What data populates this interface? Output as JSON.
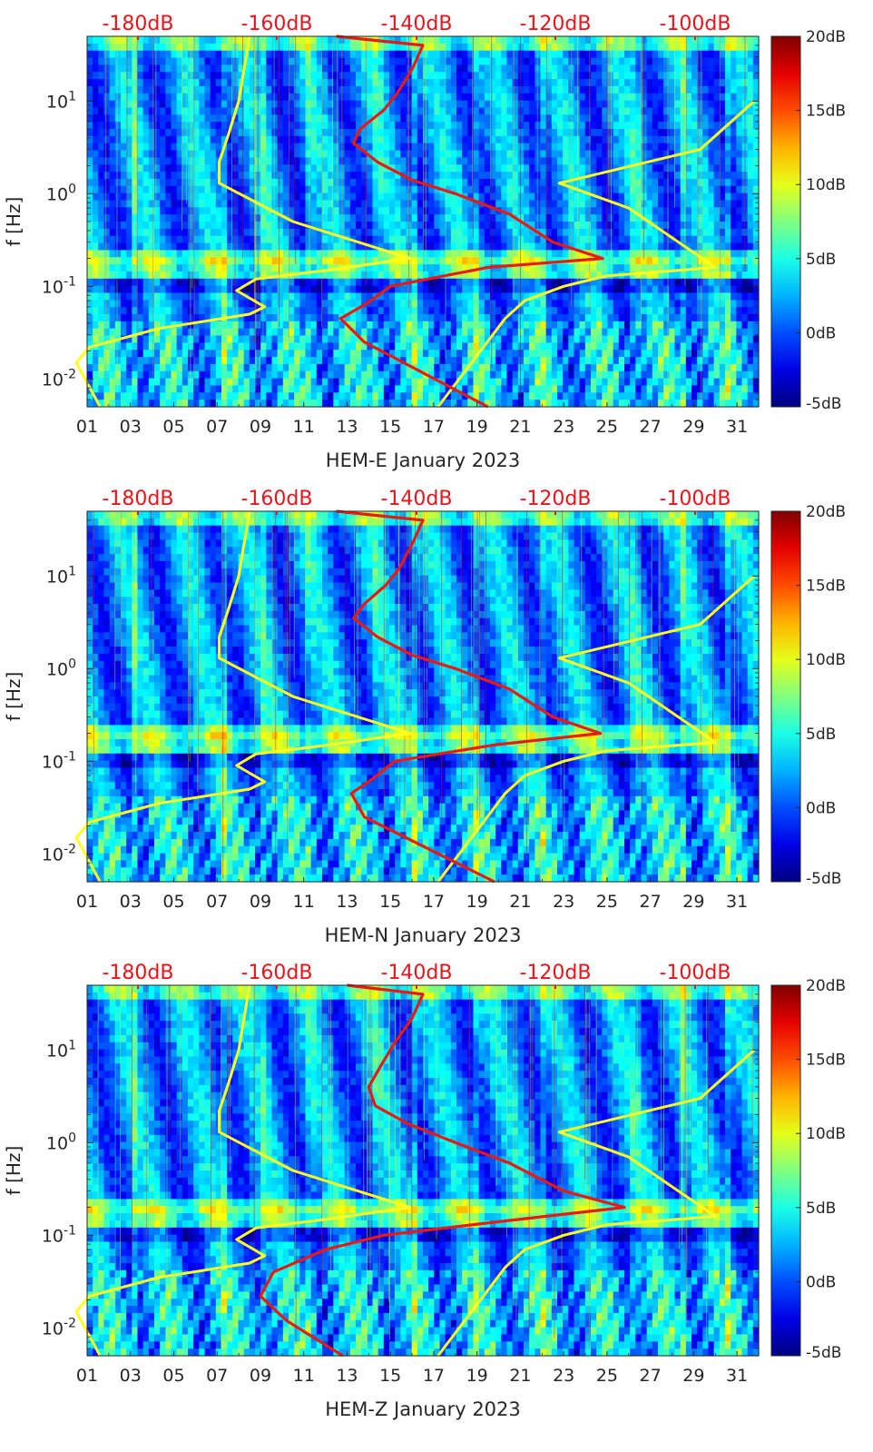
{
  "chart_data": [
    {
      "type": "heatmap",
      "xlabel": "HEM-E January 2023",
      "ylabel": "f [Hz]",
      "yscale": "log",
      "ylim": [
        0.005,
        50
      ],
      "xlim": [
        1,
        32
      ],
      "x_ticks": [
        "01",
        "03",
        "05",
        "07",
        "09",
        "11",
        "13",
        "15",
        "17",
        "19",
        "21",
        "23",
        "25",
        "27",
        "29",
        "31"
      ],
      "y_ticks": [
        "10-2",
        "10-1",
        "100",
        "101"
      ],
      "top_axis_ticks": [
        "-180dB",
        "-160dB",
        "-140dB",
        "-120dB",
        "-100dB"
      ],
      "colorbar": {
        "labels": [
          "20dB",
          "15dB",
          "10dB",
          "5dB",
          "0dB",
          "-5dB"
        ],
        "range": [
          -5,
          20
        ]
      },
      "colors": {
        "top_axis": "#e8141b",
        "noise_model": "#ffff22",
        "psd_curve": "#e81a12"
      },
      "series": [
        {
          "values": [
            [
              1.6,
              0.005
            ],
            [
              0.5,
              0.015
            ],
            [
              1.1,
              0.022
            ],
            [
              4.3,
              0.035
            ],
            [
              8.5,
              0.05
            ],
            [
              9.2,
              0.06
            ],
            [
              7.9,
              0.09
            ],
            [
              8.8,
              0.12
            ],
            [
              12.2,
              0.15
            ],
            [
              15.9,
              0.2
            ],
            [
              10.5,
              0.5
            ],
            [
              7.1,
              1.3
            ],
            [
              7.1,
              2.2
            ],
            [
              7.5,
              4.2
            ],
            [
              8.0,
              10
            ],
            [
              8.5,
              50
            ]
          ]
        },
        {
          "values": [
            [
              17.2,
              0.005
            ],
            [
              20.3,
              0.045
            ],
            [
              21.2,
              0.07
            ],
            [
              23,
              0.1
            ],
            [
              25,
              0.13
            ],
            [
              30,
              0.16
            ],
            [
              26,
              0.7
            ],
            [
              22.8,
              1.3
            ],
            [
              29.3,
              3.0
            ],
            [
              31.8,
              10
            ]
          ]
        },
        {
          "values": [
            [
              19.5,
              0.005
            ],
            [
              13.8,
              0.025
            ],
            [
              12.7,
              0.045
            ],
            [
              13.9,
              0.065
            ],
            [
              15,
              0.1
            ],
            [
              19.5,
              0.16
            ],
            [
              24.8,
              0.2
            ],
            [
              22.5,
              0.3
            ],
            [
              20.5,
              0.6
            ],
            [
              18,
              1.0
            ],
            [
              16,
              1.4
            ],
            [
              14.4,
              2.2
            ],
            [
              13.3,
              3.5
            ],
            [
              13.6,
              5
            ],
            [
              14.7,
              8
            ],
            [
              15.3,
              12
            ],
            [
              16,
              22
            ],
            [
              16.5,
              40
            ],
            [
              12.5,
              50
            ]
          ]
        }
      ]
    },
    {
      "type": "heatmap",
      "xlabel": "HEM-N January 2023",
      "ylabel": "f [Hz]",
      "yscale": "log",
      "ylim": [
        0.005,
        50
      ],
      "xlim": [
        1,
        32
      ],
      "x_ticks": [
        "01",
        "03",
        "05",
        "07",
        "09",
        "11",
        "13",
        "15",
        "17",
        "19",
        "21",
        "23",
        "25",
        "27",
        "29",
        "31"
      ],
      "y_ticks": [
        "10-2",
        "10-1",
        "100",
        "101"
      ],
      "top_axis_ticks": [
        "-180dB",
        "-160dB",
        "-140dB",
        "-120dB",
        "-100dB"
      ],
      "colorbar": {
        "labels": [
          "20dB",
          "15dB",
          "10dB",
          "5dB",
          "0dB",
          "-5dB"
        ],
        "range": [
          -5,
          20
        ]
      },
      "colors": {
        "top_axis": "#e8141b",
        "noise_model": "#ffff22",
        "psd_curve": "#e81a12"
      },
      "series": [
        {
          "values": [
            [
              1.6,
              0.005
            ],
            [
              0.5,
              0.015
            ],
            [
              1.1,
              0.022
            ],
            [
              4.3,
              0.035
            ],
            [
              8.5,
              0.05
            ],
            [
              9.2,
              0.06
            ],
            [
              7.9,
              0.09
            ],
            [
              8.8,
              0.12
            ],
            [
              12.2,
              0.15
            ],
            [
              15.9,
              0.2
            ],
            [
              10.5,
              0.5
            ],
            [
              7.1,
              1.3
            ],
            [
              7.1,
              2.2
            ],
            [
              7.5,
              4.2
            ],
            [
              8.0,
              10
            ],
            [
              8.5,
              50
            ]
          ]
        },
        {
          "values": [
            [
              17.2,
              0.005
            ],
            [
              20.3,
              0.045
            ],
            [
              21.2,
              0.07
            ],
            [
              23,
              0.1
            ],
            [
              25,
              0.13
            ],
            [
              30,
              0.16
            ],
            [
              26,
              0.7
            ],
            [
              22.8,
              1.3
            ],
            [
              29.3,
              3.0
            ],
            [
              31.8,
              10
            ]
          ]
        },
        {
          "values": [
            [
              19.8,
              0.005
            ],
            [
              13.8,
              0.025
            ],
            [
              13.2,
              0.045
            ],
            [
              14.2,
              0.065
            ],
            [
              15.2,
              0.1
            ],
            [
              19.8,
              0.15
            ],
            [
              24.7,
              0.2
            ],
            [
              22.5,
              0.3
            ],
            [
              20.5,
              0.6
            ],
            [
              18,
              1.0
            ],
            [
              16,
              1.4
            ],
            [
              14.4,
              2.2
            ],
            [
              13.3,
              3.5
            ],
            [
              13.8,
              5
            ],
            [
              14.8,
              8
            ],
            [
              15.4,
              12
            ],
            [
              16,
              22
            ],
            [
              16.5,
              40
            ],
            [
              12.5,
              50
            ]
          ]
        }
      ]
    },
    {
      "type": "heatmap",
      "xlabel": "HEM-Z January 2023",
      "ylabel": "f [Hz]",
      "yscale": "log",
      "ylim": [
        0.005,
        50
      ],
      "xlim": [
        1,
        32
      ],
      "x_ticks": [
        "01",
        "03",
        "05",
        "07",
        "09",
        "11",
        "13",
        "15",
        "17",
        "19",
        "21",
        "23",
        "25",
        "27",
        "29",
        "31"
      ],
      "y_ticks": [
        "10-2",
        "10-1",
        "100",
        "101"
      ],
      "top_axis_ticks": [
        "-180dB",
        "-160dB",
        "-140dB",
        "-120dB",
        "-100dB"
      ],
      "colorbar": {
        "labels": [
          "20dB",
          "15dB",
          "10dB",
          "5dB",
          "0dB",
          "-5dB"
        ],
        "range": [
          -5,
          20
        ]
      },
      "colors": {
        "top_axis": "#e8141b",
        "noise_model": "#ffff22",
        "psd_curve": "#e81a12"
      },
      "series": [
        {
          "values": [
            [
              1.6,
              0.005
            ],
            [
              0.5,
              0.015
            ],
            [
              1.1,
              0.022
            ],
            [
              4.3,
              0.035
            ],
            [
              8.5,
              0.05
            ],
            [
              9.2,
              0.06
            ],
            [
              7.9,
              0.09
            ],
            [
              8.8,
              0.12
            ],
            [
              12.2,
              0.15
            ],
            [
              15.9,
              0.2
            ],
            [
              10.5,
              0.5
            ],
            [
              7.1,
              1.3
            ],
            [
              7.1,
              2.2
            ],
            [
              7.5,
              4.2
            ],
            [
              8.0,
              10
            ],
            [
              8.5,
              50
            ]
          ]
        },
        {
          "values": [
            [
              17.2,
              0.005
            ],
            [
              20.3,
              0.045
            ],
            [
              21.2,
              0.07
            ],
            [
              23,
              0.1
            ],
            [
              25,
              0.13
            ],
            [
              30,
              0.16
            ],
            [
              26,
              0.7
            ],
            [
              22.8,
              1.3
            ],
            [
              29.3,
              3.0
            ],
            [
              31.8,
              10
            ]
          ]
        },
        {
          "values": [
            [
              12.8,
              0.005
            ],
            [
              10.2,
              0.012
            ],
            [
              9.0,
              0.022
            ],
            [
              9.6,
              0.04
            ],
            [
              12,
              0.07
            ],
            [
              14.7,
              0.1
            ],
            [
              20,
              0.14
            ],
            [
              25.8,
              0.2
            ],
            [
              23,
              0.3
            ],
            [
              20.5,
              0.6
            ],
            [
              18,
              1.0
            ],
            [
              15.8,
              1.6
            ],
            [
              14.3,
              2.5
            ],
            [
              14,
              4
            ],
            [
              14.6,
              7
            ],
            [
              15.2,
              12
            ],
            [
              16,
              22
            ],
            [
              16.5,
              40
            ],
            [
              13.0,
              50
            ]
          ]
        }
      ]
    }
  ]
}
